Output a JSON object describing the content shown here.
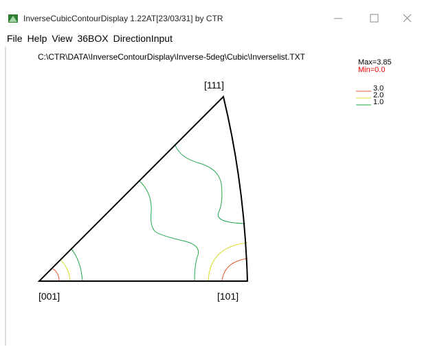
{
  "window": {
    "title": "InverseCubicContourDisplay 1.22AT[23/03/31] by CTR"
  },
  "menu": [
    "File",
    "Help",
    "View",
    "36BOX",
    "DirectionInput"
  ],
  "content": {
    "file_path": "C:\\CTR\\DATA\\InverseContourDisplay\\Inverse-5deg\\Cubic\\Inverselist.TXT",
    "max_label": "Max=3.85",
    "min_label": "Min=0.0",
    "legend": [
      "3.0",
      "2.0",
      "1.0"
    ],
    "corners": {
      "top": "[111]",
      "left": "[001]",
      "right": "[101]"
    }
  }
}
